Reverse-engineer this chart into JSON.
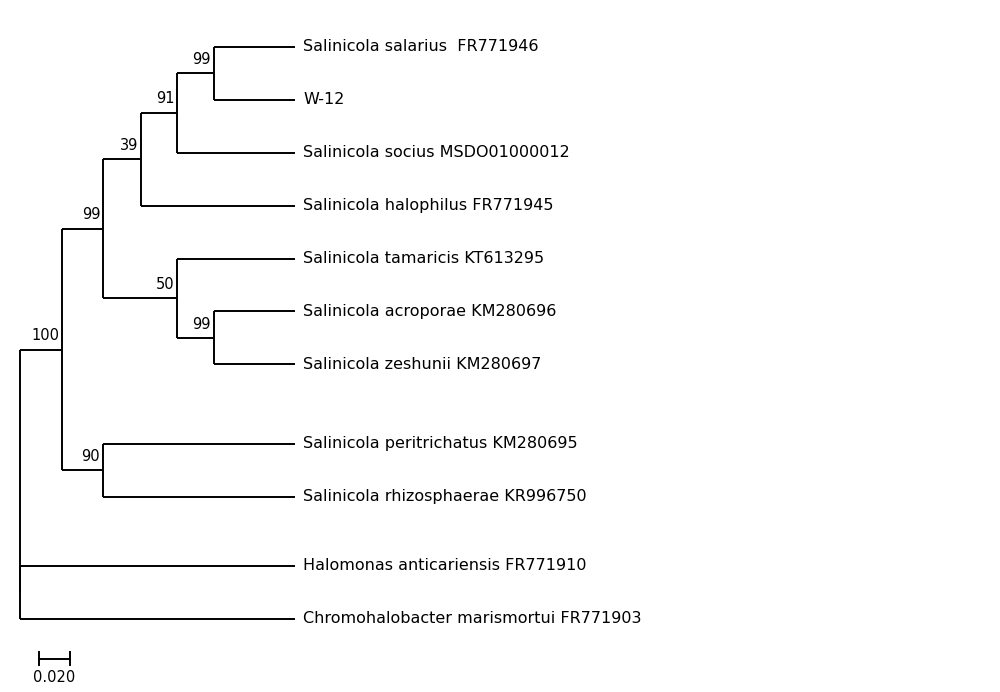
{
  "taxa_labels": {
    "salarius": "Salinicola salarius  FR771946",
    "w12": "W-12",
    "socius": "Salinicola socius MSDO01000012",
    "halophilus": "Salinicola halophilus FR771945",
    "tamaricis": "Salinicola tamaricis KT613295",
    "acroporae": "Salinicola acroporae KM280696",
    "zeshunii": "Salinicola zeshunii KM280697",
    "peritrichatus": "Salinicola peritrichatus KM280695",
    "rhizosphaerae": "Salinicola rhizosphaerae KR996750",
    "halomonas": "Halomonas anticariensis FR771910",
    "chromohalobacter": "Chromohalobacter marismortui FR771903"
  },
  "line_color": "#000000",
  "bg_color": "#ffffff",
  "font_size": 11.5,
  "bootstrap_font_size": 10.5,
  "scale_bar_value": "0.020",
  "lw": 1.4
}
